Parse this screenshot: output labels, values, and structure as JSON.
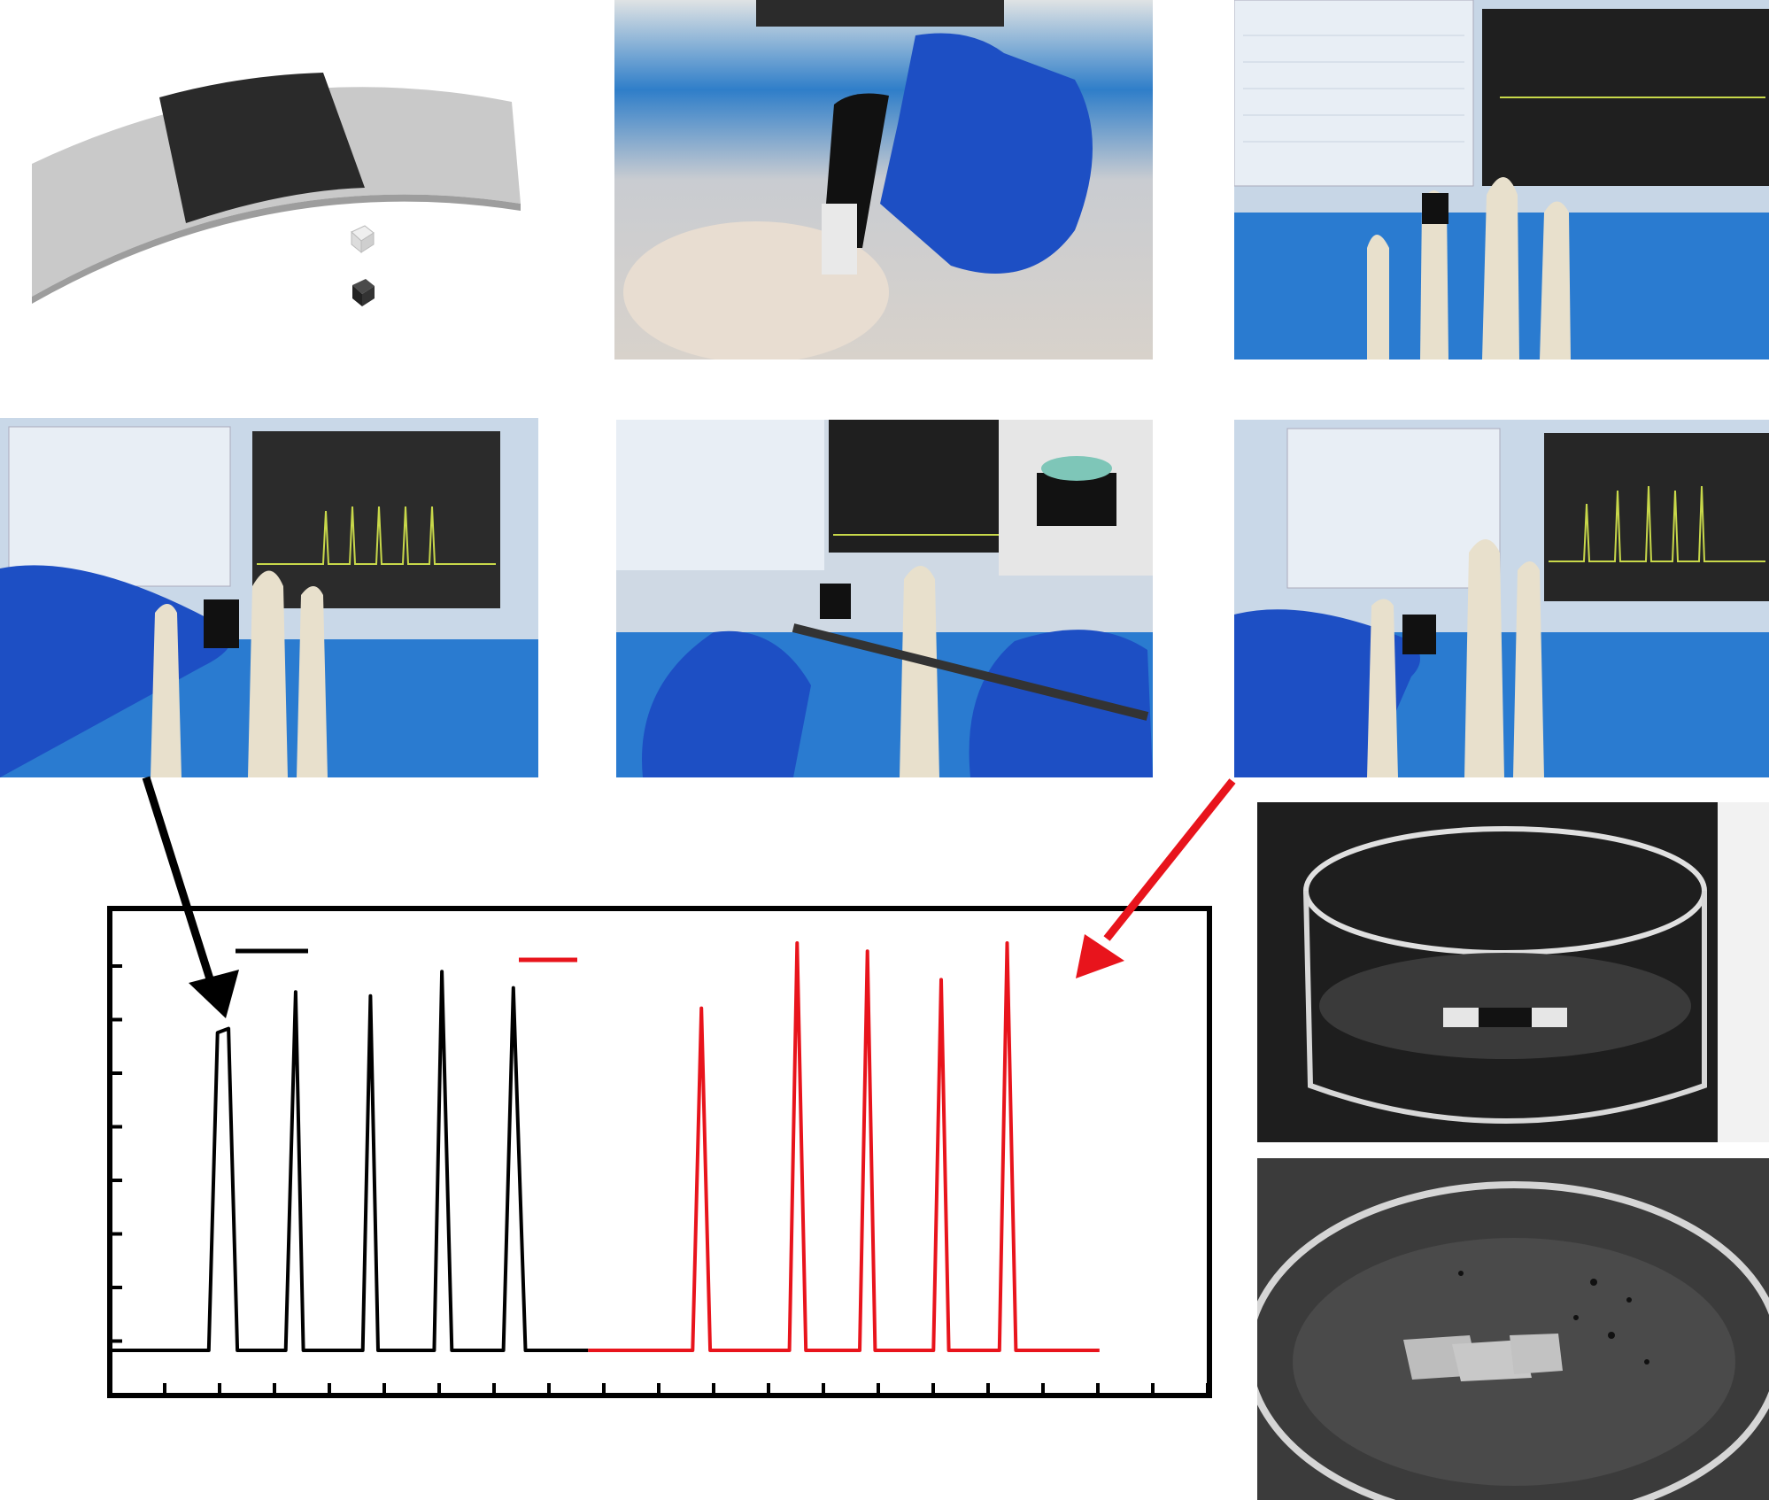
{
  "colors": {
    "black_series": "#000000",
    "red_series": "#e8141c",
    "glove_blue": "#1d4fc4",
    "monitor_trace": "#c8d84a"
  },
  "icons": [
    "film-sensor-icon",
    "cube-icon",
    "arrow-icon"
  ],
  "chart_data": {
    "type": "line",
    "title": "",
    "xlabel": "",
    "ylabel": "",
    "xlim": [
      0,
      100
    ],
    "ylim": [
      0,
      1
    ],
    "grid": false,
    "legend": "top-left",
    "series": [
      {
        "color": "#000000",
        "x": [
          0,
          9,
          9.8,
          10.8,
          11.6,
          16,
          16.9,
          17.6,
          23,
          23.7,
          24.4,
          29.5,
          30.2,
          31.1,
          35.8,
          36.7,
          37.8,
          43.5
        ],
        "y": [
          0,
          0,
          0.78,
          0.79,
          0,
          0,
          0.88,
          0,
          0,
          0.87,
          0,
          0,
          0.93,
          0,
          0,
          0.89,
          0,
          0
        ]
      },
      {
        "color": "#e8141c",
        "x": [
          43.5,
          53,
          53.8,
          54.6,
          61.8,
          62.5,
          63.3,
          68.2,
          68.9,
          69.6,
          74.9,
          75.6,
          76.3,
          80.9,
          81.6,
          82.4,
          90
        ],
        "y": [
          0,
          0,
          0.84,
          0,
          0,
          1.0,
          0,
          0,
          0.98,
          0,
          0,
          0.91,
          0,
          0,
          1.0,
          0,
          0
        ]
      }
    ]
  }
}
